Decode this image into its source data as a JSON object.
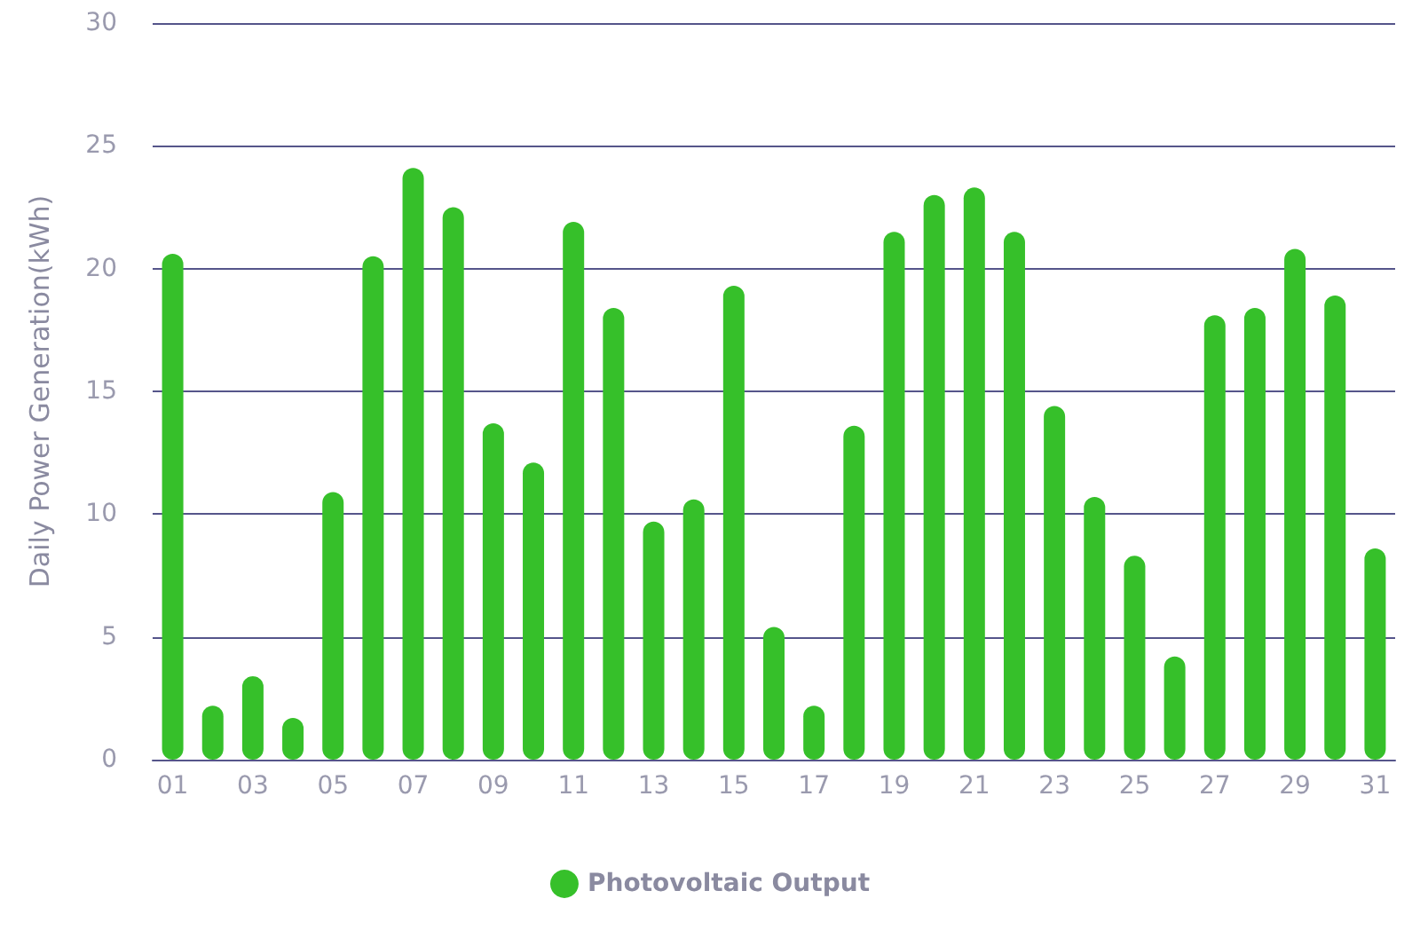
{
  "chart_data": {
    "type": "bar",
    "ylabel": "Daily Power Generation(kWh)",
    "categories": [
      "01",
      null,
      "03",
      null,
      "05",
      null,
      "07",
      null,
      "09",
      null,
      "11",
      null,
      "13",
      null,
      "15",
      null,
      "17",
      null,
      "19",
      null,
      "21",
      null,
      "23",
      null,
      "25",
      null,
      "27",
      null,
      "29",
      null,
      "31"
    ],
    "series": [
      {
        "name": "Photovoltaic Output",
        "color": "#36c02a",
        "values": [
          20.6,
          2.2,
          3.4,
          1.7,
          10.9,
          20.5,
          24.1,
          22.5,
          13.7,
          12.1,
          21.9,
          18.4,
          9.7,
          10.6,
          19.3,
          5.4,
          2.2,
          13.6,
          21.5,
          23.0,
          23.3,
          21.5,
          14.4,
          10.7,
          8.3,
          4.2,
          18.1,
          18.4,
          20.8,
          18.9,
          8.6
        ]
      }
    ],
    "ylim": [
      0,
      30
    ],
    "yticks": [
      0,
      5,
      10,
      15,
      20,
      25,
      30
    ],
    "grid": "y",
    "legend": "bottom"
  }
}
